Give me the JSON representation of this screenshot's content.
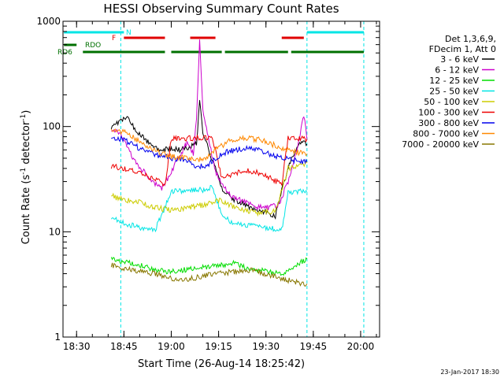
{
  "chart_data": {
    "type": "line",
    "title": "HESSI Observing Summary Count Rates",
    "xlabel": "Start Time (26-Aug-14 18:25:42)",
    "ylabel_main": "Count Rate (s",
    "ylabel_sup1": "-1",
    "ylabel_mid": " detector",
    "ylabel_sup2": "-1",
    "ylabel_end": ")",
    "yscale": "log",
    "ylim": [
      1,
      1000
    ],
    "y_ticks": [
      1,
      10,
      100,
      1000
    ],
    "y_tick_labels": [
      "1",
      "10",
      "100",
      "1000"
    ],
    "xlim": [
      "18:25:42",
      "20:06"
    ],
    "x_ticks": [
      "18:30",
      "18:45",
      "19:00",
      "19:15",
      "19:30",
      "19:45",
      "20:00"
    ],
    "legend_header": [
      "Det 1,3,6,9,",
      "FDecim 1, Att 0"
    ],
    "legend_position": "right",
    "timestamp": "23-Jan-2017 18:30",
    "vlines": [
      "18:44",
      "19:43",
      "20:01"
    ],
    "flags": [
      {
        "label": "N",
        "color": "#00e5e5",
        "segments": [
          [
            "18:26",
            "18:45"
          ],
          [
            "19:43",
            "20:01"
          ]
        ]
      },
      {
        "label": "F",
        "color": "#e00000",
        "segments": [
          [
            "18:45",
            "18:58"
          ],
          [
            "19:06",
            "19:14"
          ],
          [
            "19:35",
            "19:42"
          ]
        ]
      },
      {
        "label": "RDO",
        "color": "#007000",
        "segments": [
          [
            "18:26",
            "18:30"
          ]
        ]
      },
      {
        "label": "RD6",
        "color": "#007000",
        "segments": [
          [
            "18:32",
            "18:58"
          ],
          [
            "19:00",
            "19:16"
          ],
          [
            "19:17",
            "19:37"
          ],
          [
            "19:38",
            "20:01"
          ]
        ]
      }
    ],
    "series": [
      {
        "name": "3 - 6 keV",
        "color": "#000000",
        "points": [
          [
            "18:41",
            100
          ],
          [
            "18:44",
            115
          ],
          [
            "18:46",
            120
          ],
          [
            "18:49",
            92
          ],
          [
            "18:52",
            74
          ],
          [
            "18:55",
            62
          ],
          [
            "18:58",
            60
          ],
          [
            "19:00",
            62
          ],
          [
            "19:03",
            60
          ],
          [
            "19:06",
            65
          ],
          [
            "19:08",
            70
          ],
          [
            "19:09",
            175
          ],
          [
            "19:10",
            90
          ],
          [
            "19:12",
            58
          ],
          [
            "19:14",
            40
          ],
          [
            "19:16",
            26
          ],
          [
            "19:19",
            21
          ],
          [
            "19:22",
            19
          ],
          [
            "19:25",
            17
          ],
          [
            "19:28",
            16
          ],
          [
            "19:31",
            15
          ],
          [
            "19:33",
            14
          ],
          [
            "19:35",
            25
          ],
          [
            "19:38",
            50
          ],
          [
            "19:41",
            70
          ],
          [
            "19:43",
            68
          ]
        ]
      },
      {
        "name": "6 - 12 keV",
        "color": "#cc00cc",
        "points": [
          [
            "18:41",
            95
          ],
          [
            "18:43",
            88
          ],
          [
            "18:45",
            75
          ],
          [
            "18:48",
            48
          ],
          [
            "18:51",
            38
          ],
          [
            "18:54",
            30
          ],
          [
            "18:57",
            26
          ],
          [
            "19:00",
            37
          ],
          [
            "19:03",
            55
          ],
          [
            "19:05",
            70
          ],
          [
            "19:07",
            55
          ],
          [
            "19:08",
            120
          ],
          [
            "19:09",
            640
          ],
          [
            "19:10",
            150
          ],
          [
            "19:12",
            70
          ],
          [
            "19:14",
            38
          ],
          [
            "19:16",
            28
          ],
          [
            "19:19",
            22
          ],
          [
            "19:22",
            20
          ],
          [
            "19:25",
            18
          ],
          [
            "19:28",
            17
          ],
          [
            "19:31",
            17
          ],
          [
            "19:34",
            18
          ],
          [
            "19:37",
            30
          ],
          [
            "19:40",
            60
          ],
          [
            "19:42",
            130
          ],
          [
            "19:43",
            75
          ]
        ]
      },
      {
        "name": "12 - 25 keV",
        "color": "#00dd00",
        "points": [
          [
            "18:41",
            5.5
          ],
          [
            "18:45",
            5.2
          ],
          [
            "18:50",
            4.8
          ],
          [
            "18:55",
            4.3
          ],
          [
            "19:00",
            4.2
          ],
          [
            "19:05",
            4.4
          ],
          [
            "19:10",
            4.6
          ],
          [
            "19:15",
            4.8
          ],
          [
            "19:20",
            5.0
          ],
          [
            "19:25",
            4.5
          ],
          [
            "19:30",
            4.2
          ],
          [
            "19:35",
            4.0
          ],
          [
            "19:40",
            5.0
          ],
          [
            "19:43",
            5.5
          ]
        ]
      },
      {
        "name": "25 - 50 keV",
        "color": "#00e5e5",
        "points": [
          [
            "18:41",
            14
          ],
          [
            "18:45",
            12
          ],
          [
            "18:50",
            11
          ],
          [
            "18:55",
            10.5
          ],
          [
            "19:00",
            24
          ],
          [
            "19:05",
            25
          ],
          [
            "19:10",
            25
          ],
          [
            "19:13",
            27
          ],
          [
            "19:16",
            14
          ],
          [
            "19:20",
            12
          ],
          [
            "19:25",
            11.5
          ],
          [
            "19:30",
            11
          ],
          [
            "19:35",
            10.5
          ],
          [
            "19:37",
            24
          ],
          [
            "19:43",
            24
          ]
        ]
      },
      {
        "name": "50 - 100 keV",
        "color": "#cccc00",
        "points": [
          [
            "18:41",
            22
          ],
          [
            "18:45",
            20
          ],
          [
            "18:50",
            19
          ],
          [
            "18:55",
            17
          ],
          [
            "19:00",
            16
          ],
          [
            "19:05",
            17
          ],
          [
            "19:10",
            18
          ],
          [
            "19:15",
            20
          ],
          [
            "19:18",
            18
          ],
          [
            "19:23",
            16
          ],
          [
            "19:28",
            15
          ],
          [
            "19:33",
            16
          ],
          [
            "19:37",
            40
          ],
          [
            "19:43",
            45
          ]
        ]
      },
      {
        "name": "100 - 300 keV",
        "color": "#ee0000",
        "points": [
          [
            "18:41",
            42
          ],
          [
            "18:45",
            40
          ],
          [
            "18:50",
            36
          ],
          [
            "18:55",
            31
          ],
          [
            "18:58",
            28
          ],
          [
            "19:00",
            76
          ],
          [
            "19:05",
            77
          ],
          [
            "19:10",
            79
          ],
          [
            "19:13",
            79
          ],
          [
            "19:16",
            32
          ],
          [
            "19:20",
            36
          ],
          [
            "19:24",
            38
          ],
          [
            "19:28",
            36
          ],
          [
            "19:32",
            32
          ],
          [
            "19:35",
            28
          ],
          [
            "19:37",
            78
          ],
          [
            "19:43",
            76
          ]
        ]
      },
      {
        "name": "300 - 800 keV",
        "color": "#0000ee",
        "points": [
          [
            "18:41",
            80
          ],
          [
            "18:45",
            75
          ],
          [
            "18:50",
            62
          ],
          [
            "18:55",
            54
          ],
          [
            "19:00",
            50
          ],
          [
            "19:05",
            48
          ],
          [
            "19:08",
            42
          ],
          [
            "19:11",
            42
          ],
          [
            "19:14",
            50
          ],
          [
            "19:18",
            58
          ],
          [
            "19:23",
            62
          ],
          [
            "19:28",
            60
          ],
          [
            "19:33",
            52
          ],
          [
            "19:38",
            48
          ],
          [
            "19:43",
            46
          ]
        ]
      },
      {
        "name": "800 - 7000 keV",
        "color": "#ff8800",
        "points": [
          [
            "18:41",
            92
          ],
          [
            "18:45",
            90
          ],
          [
            "18:50",
            72
          ],
          [
            "18:55",
            58
          ],
          [
            "19:00",
            52
          ],
          [
            "19:05",
            50
          ],
          [
            "19:10",
            48
          ],
          [
            "19:14",
            60
          ],
          [
            "19:18",
            72
          ],
          [
            "19:23",
            78
          ],
          [
            "19:28",
            75
          ],
          [
            "19:33",
            66
          ],
          [
            "19:38",
            58
          ],
          [
            "19:43",
            55
          ]
        ]
      },
      {
        "name": "7000 - 20000 keV",
        "color": "#887700",
        "points": [
          [
            "18:41",
            4.8
          ],
          [
            "18:45",
            4.5
          ],
          [
            "18:50",
            4.2
          ],
          [
            "18:55",
            4.0
          ],
          [
            "19:00",
            3.6
          ],
          [
            "19:05",
            3.5
          ],
          [
            "19:10",
            3.8
          ],
          [
            "19:15",
            4.0
          ],
          [
            "19:20",
            4.2
          ],
          [
            "19:25",
            4.3
          ],
          [
            "19:30",
            4.0
          ],
          [
            "19:35",
            3.6
          ],
          [
            "19:40",
            3.3
          ],
          [
            "19:43",
            3.2
          ]
        ]
      }
    ]
  }
}
